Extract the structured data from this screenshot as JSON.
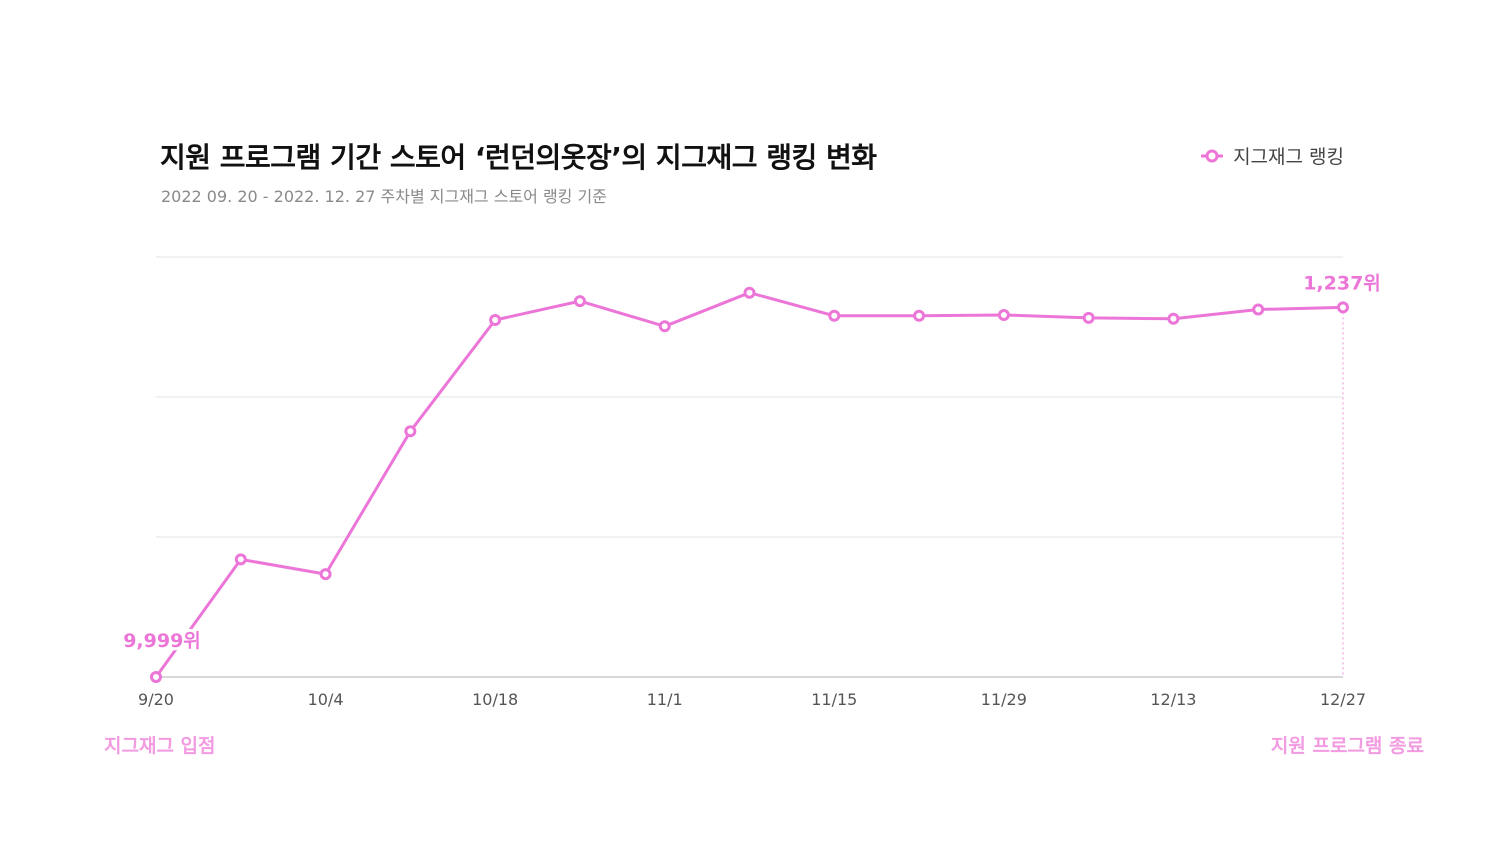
{
  "chart_data": {
    "type": "line",
    "title": "지원 프로그램 기간 스토어 ‘런던의옷장’의 지그재그 랭킹 변화",
    "subtitle": "2022 09. 20 - 2022. 12. 27 주차별 지그재그 스토어 랭킹 기준",
    "legend": {
      "position": "top-right",
      "label": "지그재그 랭킹"
    },
    "grid": true,
    "x_tick_labels": [
      "9/20",
      "10/4",
      "10/18",
      "11/1",
      "11/15",
      "11/29",
      "12/13",
      "12/27"
    ],
    "series": [
      {
        "name": "지그재그 랭킹",
        "color": "#ec76d7",
        "x": [
          "9/20",
          "9/27",
          "10/4",
          "10/11",
          "10/18",
          "10/25",
          "11/1",
          "11/8",
          "11/15",
          "11/22",
          "11/29",
          "12/6",
          "12/13",
          "12/20",
          "12/27"
        ],
        "values": [
          0,
          28,
          24.5,
          58.5,
          85,
          89.5,
          83.5,
          91.5,
          86,
          86,
          86.2,
          85.5,
          85.3,
          87.5,
          88
        ]
      }
    ],
    "y_relative_scale": [
      0,
      100
    ],
    "point_labels": [
      {
        "index": 0,
        "text": "9,999위"
      },
      {
        "index": 14,
        "text": "1,237위"
      }
    ],
    "annotations": {
      "start": "지그재그 입점",
      "end": "지원 프로그램 종료"
    }
  },
  "colors": {
    "line": "#ec76d7",
    "annotation": "#f29be1",
    "grid": "#e6e6e6",
    "axis": "#cccccc"
  }
}
